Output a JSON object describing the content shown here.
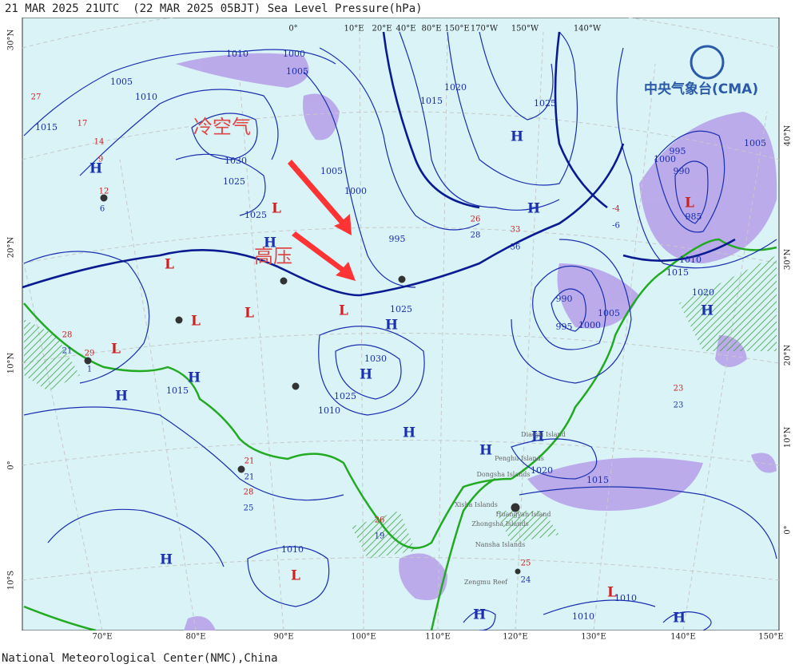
{
  "header": {
    "title": "21 MAR 2025 21UTC  (22 MAR 2025 05BJT) Sea Level Pressure(hPa)"
  },
  "footer": "National Meteorological Center(NMC),China",
  "logo": "中央气象台(CMA)",
  "annotations": [
    "冷空气",
    "高压"
  ],
  "lon_bottom": [
    "70°E",
    "80°E",
    "90°E",
    "100°E",
    "110°E",
    "120°E",
    "130°E",
    "140°E",
    "150°E"
  ],
  "lon_top": [
    "0°",
    "10°E",
    "20°E",
    "40°E",
    "80°E",
    "150°E",
    "170°W",
    "150°W",
    "140°W"
  ],
  "lat_left": [
    "30°N",
    "20°N",
    "10°N",
    "0°",
    "10°S"
  ],
  "lat_right": [
    "40°N",
    "30°N",
    "20°N",
    "10°N",
    "0°"
  ],
  "systems": [
    "H",
    "H",
    "L",
    "H",
    "L",
    "H",
    "L",
    "L",
    "H",
    "L",
    "H",
    "L",
    "H",
    "H",
    "H",
    "H",
    "H",
    "H",
    "H",
    "L",
    "L",
    "H",
    "H",
    "L"
  ],
  "isobars": [
    "1010",
    "1000",
    "1005",
    "1005",
    "1010",
    "1015",
    "1030",
    "1025",
    "1025",
    "1015",
    "1020",
    "1025",
    "1000",
    "1005",
    "995",
    "990",
    "995",
    "1000",
    "1005",
    "1010",
    "1015",
    "1020",
    "995",
    "1000",
    "990",
    "985",
    "1005",
    "1010",
    "1010",
    "1010",
    "1015",
    "1020",
    "1015",
    "1025",
    "1030",
    "1025",
    "1010"
  ],
  "places": [
    "Dongsha Islands",
    "Penghu Islands",
    "Xisha Islands",
    "Zhongsha Islands",
    "Nansha Islands",
    "Zengmu Reef",
    "Huangyan Island",
    "Diaoyu Island"
  ],
  "stations": [
    "27",
    "17",
    "14",
    "9",
    "12",
    "6",
    "26",
    "28",
    "33",
    "36",
    "-4",
    "-6",
    "29",
    "1",
    "28",
    "21",
    "23",
    "23",
    "25",
    "24",
    "28",
    "25",
    "21",
    "21",
    "26",
    "19"
  ]
}
